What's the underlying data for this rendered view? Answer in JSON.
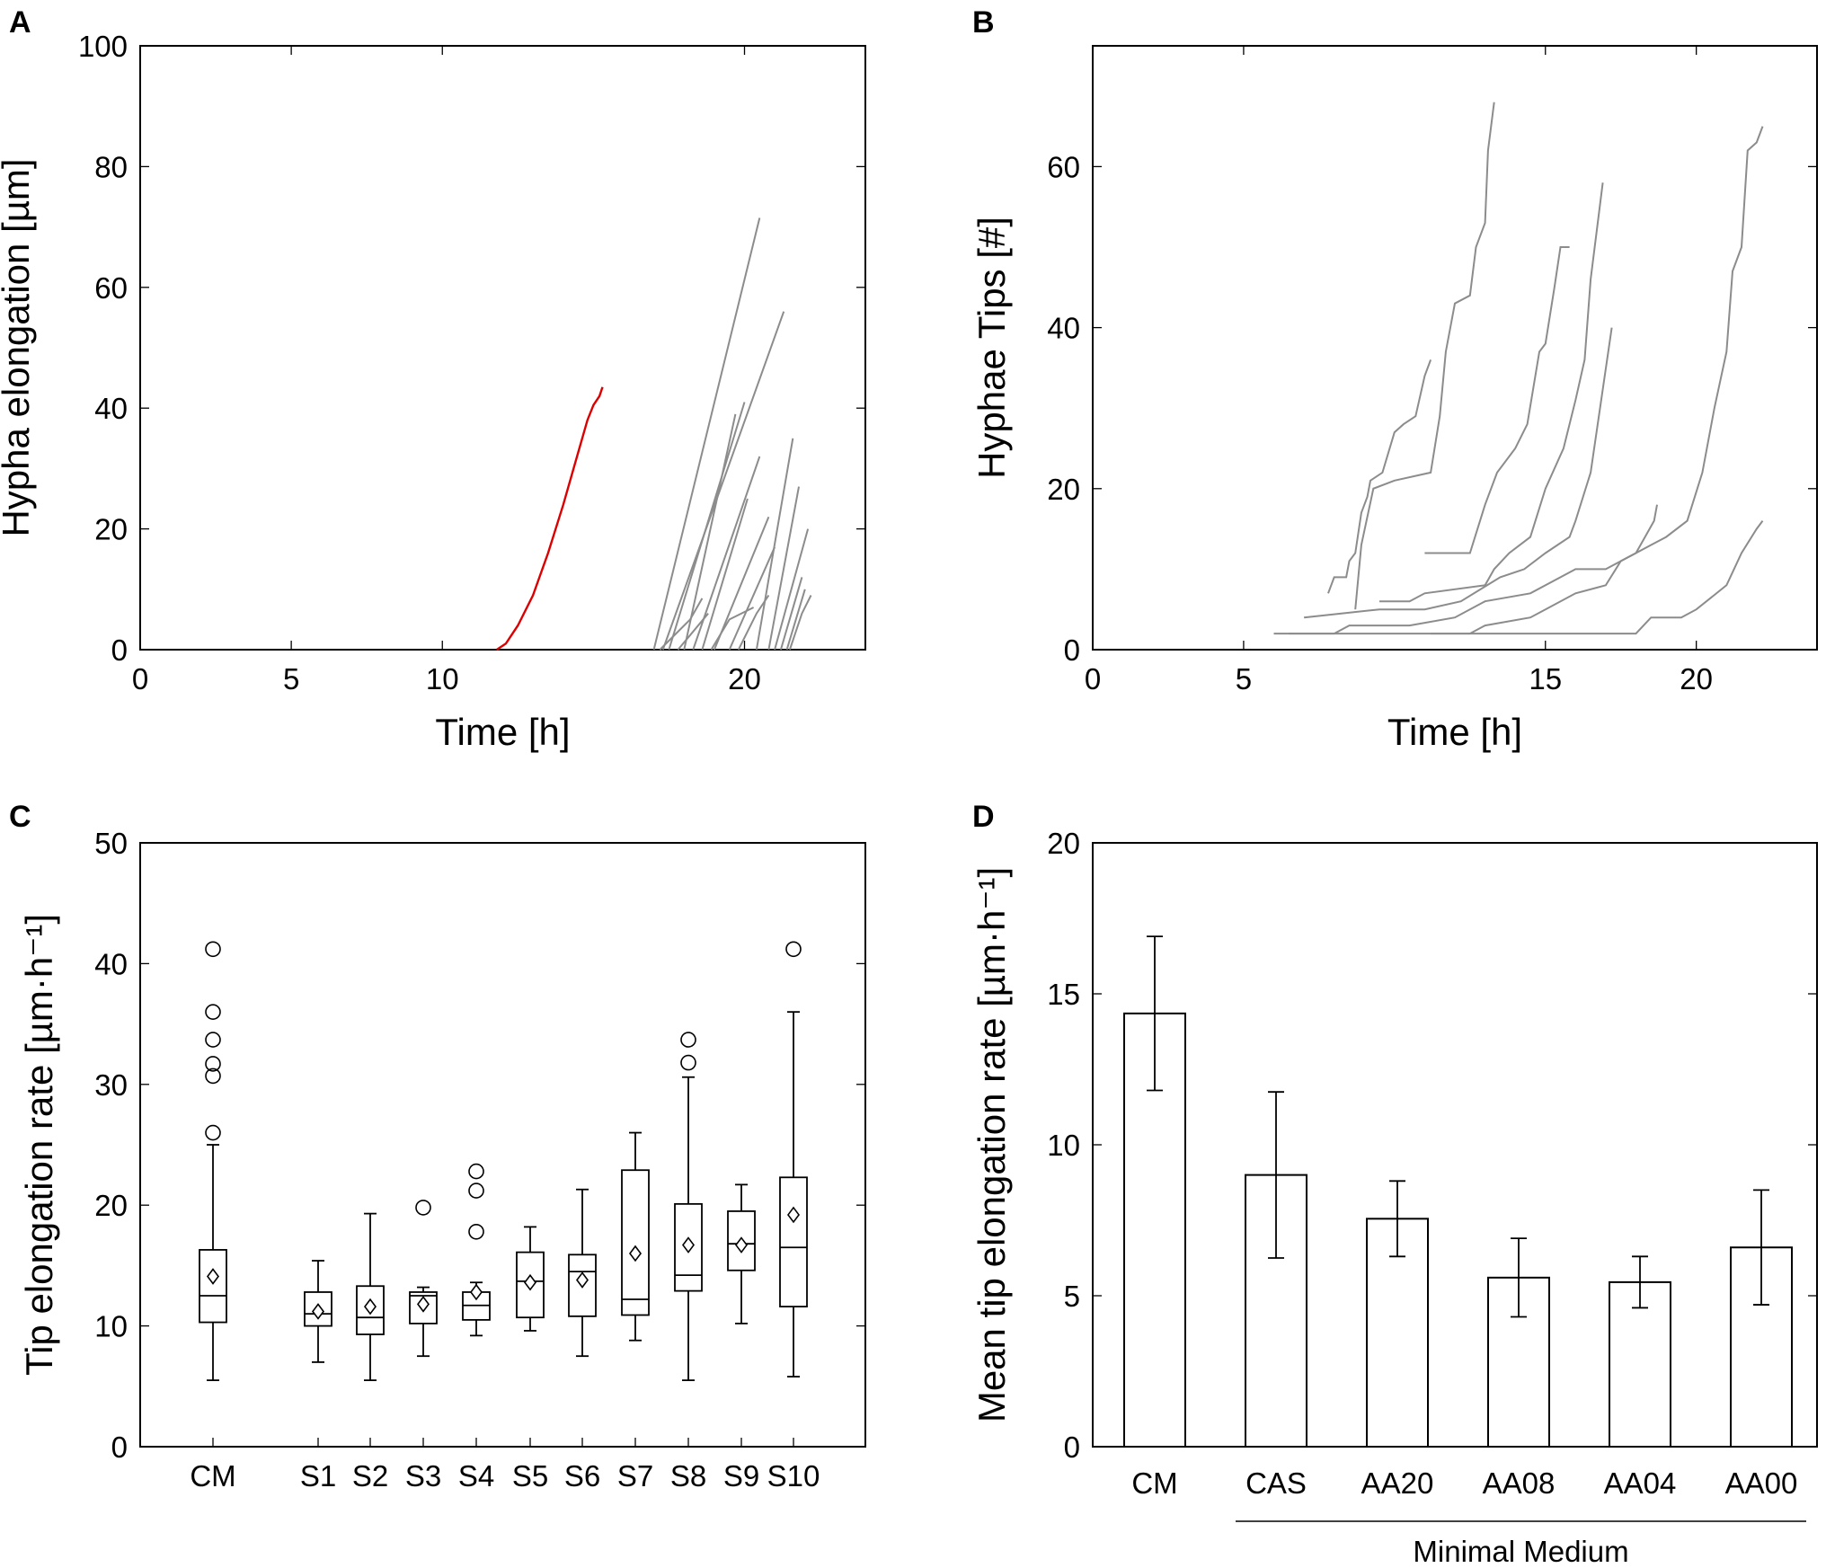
{
  "chart_data": [
    {
      "panel": "A",
      "type": "line",
      "xlabel": "Time [h]",
      "ylabel": "Hypha elongation [µm]",
      "xlim": [
        0,
        24
      ],
      "ylim": [
        0,
        100
      ],
      "xticks": [
        0,
        5,
        10,
        20
      ],
      "yticks": [
        0,
        20,
        40,
        60,
        80,
        100
      ],
      "series": [
        {
          "name": "highlighted hypha",
          "color": "#dd0000",
          "points": [
            [
              11.8,
              0
            ],
            [
              12.1,
              1
            ],
            [
              12.5,
              4
            ],
            [
              13.0,
              9
            ],
            [
              13.5,
              16
            ],
            [
              14.0,
              24
            ],
            [
              14.4,
              31
            ],
            [
              14.8,
              38
            ],
            [
              15.0,
              40.5
            ],
            [
              15.2,
              42
            ],
            [
              15.3,
              43.5
            ]
          ]
        },
        {
          "name": "hypha 1",
          "color": "#8c8c8c",
          "points": [
            [
              17.0,
              0
            ],
            [
              20.5,
              71.5
            ]
          ]
        },
        {
          "name": "hypha 2",
          "color": "#8c8c8c",
          "points": [
            [
              17.3,
              0
            ],
            [
              21.3,
              56
            ]
          ]
        },
        {
          "name": "hypha 3",
          "color": "#8c8c8c",
          "points": [
            [
              17.5,
              0
            ],
            [
              20.0,
              41
            ]
          ]
        },
        {
          "name": "hypha 4",
          "color": "#8c8c8c",
          "points": [
            [
              18.0,
              0
            ],
            [
              19.7,
              39
            ]
          ]
        },
        {
          "name": "hypha 5",
          "color": "#8c8c8c",
          "points": [
            [
              18.3,
              0
            ],
            [
              20.5,
              32
            ]
          ]
        },
        {
          "name": "hypha 6",
          "color": "#8c8c8c",
          "points": [
            [
              18.6,
              0
            ],
            [
              20.1,
              25
            ]
          ]
        },
        {
          "name": "hypha 7",
          "color": "#8c8c8c",
          "points": [
            [
              19.0,
              0
            ],
            [
              20.8,
              22
            ]
          ]
        },
        {
          "name": "hypha 8",
          "color": "#8c8c8c",
          "points": [
            [
              19.5,
              0
            ],
            [
              21.0,
              17
            ]
          ]
        },
        {
          "name": "hypha 9",
          "color": "#8c8c8c",
          "points": [
            [
              20.4,
              0
            ],
            [
              21.6,
              35
            ]
          ]
        },
        {
          "name": "hypha 10",
          "color": "#8c8c8c",
          "points": [
            [
              20.8,
              0
            ],
            [
              21.8,
              27
            ]
          ]
        },
        {
          "name": "hypha 11",
          "color": "#8c8c8c",
          "points": [
            [
              21.0,
              0
            ],
            [
              22.1,
              20
            ]
          ]
        },
        {
          "name": "hypha 12",
          "color": "#8c8c8c",
          "points": [
            [
              21.2,
              0
            ],
            [
              21.9,
              12
            ]
          ]
        },
        {
          "name": "hypha 13",
          "color": "#8c8c8c",
          "points": [
            [
              21.4,
              0
            ],
            [
              22.0,
              10
            ]
          ]
        },
        {
          "name": "hypha 14",
          "color": "#8c8c8c",
          "points": [
            [
              17.2,
              0
            ],
            [
              18.2,
              5
            ],
            [
              18.6,
              8.5
            ]
          ]
        },
        {
          "name": "hypha 15",
          "color": "#8c8c8c",
          "points": [
            [
              17.8,
              0
            ],
            [
              18.8,
              6
            ]
          ]
        },
        {
          "name": "hypha 16",
          "color": "#8c8c8c",
          "points": [
            [
              18.9,
              0
            ],
            [
              19.5,
              5
            ],
            [
              20.3,
              7
            ]
          ]
        },
        {
          "name": "hypha 17",
          "color": "#8c8c8c",
          "points": [
            [
              19.8,
              0
            ],
            [
              20.4,
              6
            ],
            [
              20.8,
              9
            ]
          ]
        },
        {
          "name": "hypha 18",
          "color": "#8c8c8c",
          "points": [
            [
              21.5,
              0
            ],
            [
              21.9,
              6
            ],
            [
              22.2,
              9
            ]
          ]
        }
      ]
    },
    {
      "panel": "B",
      "type": "line",
      "xlabel": "Time [h]",
      "ylabel": "Hyphae Tips [#]",
      "xlim": [
        0,
        24
      ],
      "ylim": [
        0,
        75
      ],
      "xticks": [
        0,
        5,
        15,
        20
      ],
      "yticks": [
        0,
        20,
        40,
        60
      ],
      "series": [
        {
          "name": "colony 1",
          "color": "#8c8c8c",
          "points": [
            [
              7.8,
              7
            ],
            [
              8.0,
              9
            ],
            [
              8.4,
              9
            ],
            [
              8.5,
              11
            ],
            [
              8.7,
              12
            ],
            [
              8.9,
              17
            ],
            [
              9.1,
              19
            ],
            [
              9.2,
              21
            ],
            [
              9.6,
              22
            ],
            [
              10.0,
              27
            ],
            [
              10.3,
              28
            ],
            [
              10.7,
              29
            ],
            [
              11.0,
              34
            ],
            [
              11.2,
              36
            ]
          ]
        },
        {
          "name": "colony 2",
          "color": "#8c8c8c",
          "points": [
            [
              8.7,
              5
            ],
            [
              8.9,
              13
            ],
            [
              9.3,
              20
            ],
            [
              10.0,
              21
            ],
            [
              11.2,
              22
            ],
            [
              11.5,
              29
            ],
            [
              11.7,
              37
            ],
            [
              12.0,
              43
            ],
            [
              12.5,
              44
            ],
            [
              12.7,
              50
            ],
            [
              13.0,
              53
            ],
            [
              13.1,
              62
            ],
            [
              13.3,
              68
            ]
          ]
        },
        {
          "name": "colony 3",
          "color": "#8c8c8c",
          "points": [
            [
              11.0,
              12
            ],
            [
              12.5,
              12
            ],
            [
              13.0,
              18
            ],
            [
              13.4,
              22
            ],
            [
              14.0,
              25
            ],
            [
              14.4,
              28
            ],
            [
              14.8,
              37
            ],
            [
              15.0,
              38
            ],
            [
              15.3,
              45
            ],
            [
              15.5,
              50
            ],
            [
              15.8,
              50
            ]
          ]
        },
        {
          "name": "colony 4",
          "color": "#8c8c8c",
          "points": [
            [
              9.5,
              6
            ],
            [
              10.5,
              6
            ],
            [
              11.0,
              7
            ],
            [
              13.0,
              8
            ],
            [
              13.3,
              10
            ],
            [
              13.8,
              12
            ],
            [
              14.5,
              14
            ],
            [
              15.0,
              20
            ],
            [
              15.6,
              25
            ],
            [
              16.0,
              31
            ],
            [
              16.3,
              36
            ],
            [
              16.5,
              46
            ],
            [
              16.9,
              58
            ]
          ]
        },
        {
          "name": "colony 5",
          "color": "#8c8c8c",
          "points": [
            [
              7.0,
              4
            ],
            [
              9.5,
              5
            ],
            [
              11.0,
              5
            ],
            [
              12.2,
              6
            ],
            [
              13.5,
              9
            ],
            [
              14.3,
              10
            ],
            [
              15.0,
              12
            ],
            [
              15.8,
              14
            ],
            [
              16.0,
              16
            ],
            [
              16.5,
              22
            ],
            [
              17.2,
              40
            ]
          ]
        },
        {
          "name": "colony 6",
          "color": "#8c8c8c",
          "points": [
            [
              6.5,
              2
            ],
            [
              8.0,
              2
            ],
            [
              8.5,
              3
            ],
            [
              10.5,
              3
            ],
            [
              12.0,
              4
            ],
            [
              13.0,
              6
            ],
            [
              14.5,
              7
            ],
            [
              16.0,
              10
            ],
            [
              17.0,
              10
            ],
            [
              18.0,
              12
            ],
            [
              18.5,
              13
            ],
            [
              19.0,
              14
            ],
            [
              19.7,
              16
            ],
            [
              20.2,
              22
            ],
            [
              20.6,
              30
            ],
            [
              21.0,
              37
            ],
            [
              21.2,
              47
            ],
            [
              21.5,
              50
            ],
            [
              21.7,
              62
            ],
            [
              22.0,
              63
            ],
            [
              22.2,
              65
            ]
          ]
        },
        {
          "name": "colony 7",
          "color": "#8c8c8c",
          "points": [
            [
              11.2,
              2
            ],
            [
              12.5,
              2
            ],
            [
              13.0,
              3
            ],
            [
              14.5,
              4
            ],
            [
              15.0,
              5
            ],
            [
              16.0,
              7
            ],
            [
              17.0,
              8
            ],
            [
              17.5,
              11
            ],
            [
              18.0,
              12
            ],
            [
              18.3,
              14
            ],
            [
              18.6,
              16
            ],
            [
              18.7,
              18
            ]
          ]
        },
        {
          "name": "colony 8",
          "color": "#8c8c8c",
          "points": [
            [
              6.0,
              2
            ],
            [
              11.5,
              2
            ],
            [
              16.0,
              2
            ],
            [
              18.0,
              2
            ],
            [
              18.5,
              4
            ],
            [
              19.5,
              4
            ],
            [
              20.0,
              5
            ],
            [
              21.0,
              8
            ],
            [
              21.5,
              12
            ],
            [
              22.0,
              15
            ],
            [
              22.2,
              16
            ]
          ]
        }
      ]
    },
    {
      "panel": "C",
      "type": "boxplot",
      "ylabel": "Tip elongation rate [µm·h⁻¹]",
      "ylim": [
        0,
        50
      ],
      "yticks": [
        0,
        10,
        20,
        30,
        40,
        50
      ],
      "categories": [
        "CM",
        "S1",
        "S2",
        "S3",
        "S4",
        "S5",
        "S6",
        "S7",
        "S8",
        "S9",
        "S10"
      ],
      "boxes": [
        {
          "category": "CM",
          "whisker_low": 5.5,
          "q1": 10.3,
          "median": 12.5,
          "q3": 16.3,
          "whisker_high": 25,
          "mean": 14.1,
          "outliers": [
            26,
            30.7,
            31.7,
            33.7,
            36,
            41.2
          ]
        },
        {
          "category": "S1",
          "whisker_low": 7.0,
          "q1": 10.0,
          "median": 11.0,
          "q3": 12.8,
          "whisker_high": 15.4,
          "mean": 11.2,
          "outliers": []
        },
        {
          "category": "S2",
          "whisker_low": 5.5,
          "q1": 9.3,
          "median": 10.7,
          "q3": 13.3,
          "whisker_high": 19.3,
          "mean": 11.6,
          "outliers": []
        },
        {
          "category": "S3",
          "whisker_low": 7.5,
          "q1": 10.2,
          "median": 12.5,
          "q3": 12.8,
          "whisker_high": 13.2,
          "mean": 11.8,
          "outliers": [
            19.8
          ]
        },
        {
          "category": "S4",
          "whisker_low": 9.2,
          "q1": 10.5,
          "median": 11.7,
          "q3": 12.8,
          "whisker_high": 13.6,
          "mean": 12.8,
          "outliers": [
            17.8,
            21.2,
            22.8
          ]
        },
        {
          "category": "S5",
          "whisker_low": 9.6,
          "q1": 10.7,
          "median": 13.7,
          "q3": 16.1,
          "whisker_high": 18.2,
          "mean": 13.6,
          "outliers": []
        },
        {
          "category": "S6",
          "whisker_low": 7.5,
          "q1": 10.8,
          "median": 14.5,
          "q3": 15.9,
          "whisker_high": 21.3,
          "mean": 13.8,
          "outliers": []
        },
        {
          "category": "S7",
          "whisker_low": 8.8,
          "q1": 10.9,
          "median": 12.2,
          "q3": 22.9,
          "whisker_high": 26.0,
          "mean": 16.0,
          "outliers": []
        },
        {
          "category": "S8",
          "whisker_low": 5.5,
          "q1": 12.9,
          "median": 14.2,
          "q3": 20.1,
          "whisker_high": 30.6,
          "mean": 16.7,
          "outliers": [
            31.8,
            33.7
          ]
        },
        {
          "category": "S9",
          "whisker_low": 10.2,
          "q1": 14.6,
          "median": 16.8,
          "q3": 19.5,
          "whisker_high": 21.7,
          "mean": 16.7,
          "outliers": []
        },
        {
          "category": "S10",
          "whisker_low": 5.8,
          "q1": 11.6,
          "median": 16.5,
          "q3": 22.3,
          "whisker_high": 36.0,
          "mean": 19.2,
          "outliers": [
            41.2
          ]
        }
      ]
    },
    {
      "panel": "D",
      "type": "bar",
      "ylabel": "Mean tip elongation rate [µm·h⁻¹]",
      "ylim": [
        0,
        20
      ],
      "yticks": [
        0,
        5,
        10,
        15,
        20
      ],
      "categories": [
        "CM",
        "CAS",
        "AA20",
        "AA08",
        "AA04",
        "AA00"
      ],
      "values": [
        14.35,
        9.0,
        7.55,
        5.6,
        5.45,
        6.6
      ],
      "errors": [
        2.55,
        2.75,
        1.25,
        1.3,
        0.85,
        1.9
      ],
      "group_label": "Minimal Medium",
      "group_categories": [
        "CAS",
        "AA20",
        "AA08",
        "AA04",
        "AA00"
      ]
    }
  ]
}
